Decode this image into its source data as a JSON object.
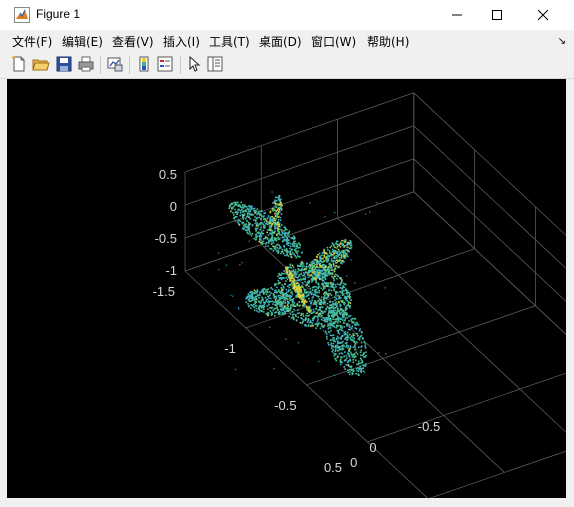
{
  "window": {
    "title": "Figure 1"
  },
  "menu": [
    {
      "label": "文件(F)"
    },
    {
      "label": "编辑(E)"
    },
    {
      "label": "查看(V)"
    },
    {
      "label": "插入(I)"
    },
    {
      "label": "工具(T)"
    },
    {
      "label": "桌面(D)"
    },
    {
      "label": "窗口(W)"
    },
    {
      "label": "帮助(H)"
    }
  ],
  "toolbar": [
    {
      "icon": "new-figure-icon"
    },
    {
      "icon": "open-file-icon"
    },
    {
      "icon": "save-icon"
    },
    {
      "icon": "print-icon"
    },
    {
      "icon": "link-plot-icon"
    },
    {
      "icon": "colorbar-icon"
    },
    {
      "icon": "legend-icon"
    },
    {
      "icon": "edit-plot-arrow-icon"
    },
    {
      "icon": "property-inspector-icon"
    }
  ],
  "colors": {
    "background": "#000000",
    "grid": "#5a5a5a",
    "tick_text": "#d9d9d9",
    "point_low": "#3fb6c8",
    "point_mid": "#43c38a",
    "point_high": "#d9d03a"
  },
  "chart_data": {
    "type": "scatter",
    "z_ticks": [
      "0.5",
      "0",
      "-0.5",
      "-1"
    ],
    "x_ticks": [
      "-1.5",
      "-1",
      "-0.5",
      "0",
      "0.5"
    ],
    "y_ticks": [
      "-0.5",
      "0",
      "0.5"
    ],
    "colormap": "parula",
    "grid": true
  }
}
